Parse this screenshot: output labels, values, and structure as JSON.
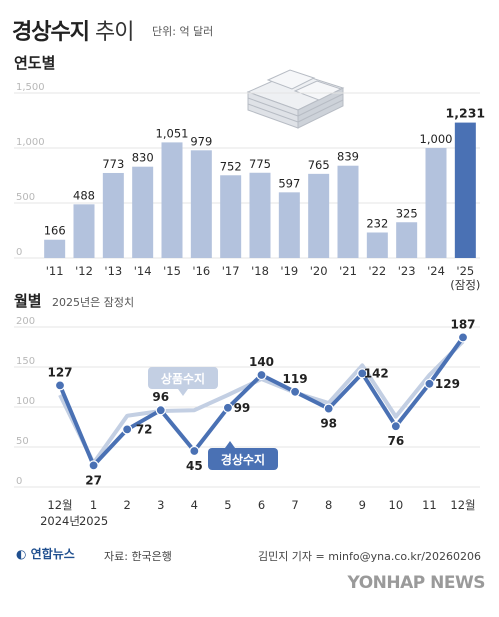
{
  "header": {
    "title_bold": "경상수지",
    "title_light": "추이",
    "unit": "단위: 억 달러"
  },
  "annual": {
    "section_label": "연도별"
  },
  "monthly": {
    "section_label": "월별",
    "note": "2025년은 잠정치"
  },
  "colors": {
    "bar": "#b3c2dd",
    "bar_highlight": "#4a71b4",
    "line_current": "#4a71b4",
    "line_goods": "#c3cfe3",
    "gridline": "#e4e4e4"
  },
  "footer": {
    "logo_text": "연합뉴스",
    "source": "자료: 한국은행",
    "credit": "김민지 기자 = minfo@yna.co.kr/20260206",
    "watermark": "YONHAP NEWS"
  },
  "chart_data": [
    {
      "type": "bar",
      "title": "",
      "categories": [
        "'11",
        "'12",
        "'13",
        "'14",
        "'15",
        "'16",
        "'17",
        "'18",
        "'19",
        "'20",
        "'21",
        "'22",
        "'23",
        "'24",
        "'25"
      ],
      "category_notes": {
        "'25": "(잠정)"
      },
      "values": [
        166,
        488,
        773,
        830,
        1051,
        979,
        752,
        775,
        597,
        765,
        839,
        232,
        325,
        1000,
        1231
      ],
      "value_labels": [
        "166",
        "488",
        "773",
        "830",
        "1,051",
        "979",
        "752",
        "775",
        "597",
        "765",
        "839",
        "232",
        "325",
        "1,000",
        "1,231"
      ],
      "highlight_index": 14,
      "ylim": [
        0,
        1500
      ],
      "yticks": [
        0,
        500,
        1000,
        1500
      ],
      "ytick_labels": [
        "0",
        "500",
        "1,000",
        "1,500"
      ],
      "grid": true
    },
    {
      "type": "line",
      "categories": [
        "12월",
        "1",
        "2",
        "3",
        "4",
        "5",
        "6",
        "7",
        "8",
        "9",
        "10",
        "11",
        "12월"
      ],
      "category_sublabels": [
        "2024년",
        "2025",
        "",
        "",
        "",
        "",
        "",
        "",
        "",
        "",
        "",
        "",
        ""
      ],
      "ylim": [
        0,
        200
      ],
      "yticks": [
        0,
        50,
        100,
        150,
        200
      ],
      "grid": true,
      "series": [
        {
          "name": "경상수지",
          "values": [
            127,
            27,
            72,
            96,
            45,
            99,
            140,
            119,
            98,
            142,
            76,
            129,
            187
          ],
          "labeled": true
        },
        {
          "name": "상품수지",
          "values": [
            115,
            30,
            89,
            95,
            96,
            115,
            135,
            118,
            105,
            152,
            88,
            140,
            182
          ],
          "labeled": false
        }
      ]
    }
  ]
}
